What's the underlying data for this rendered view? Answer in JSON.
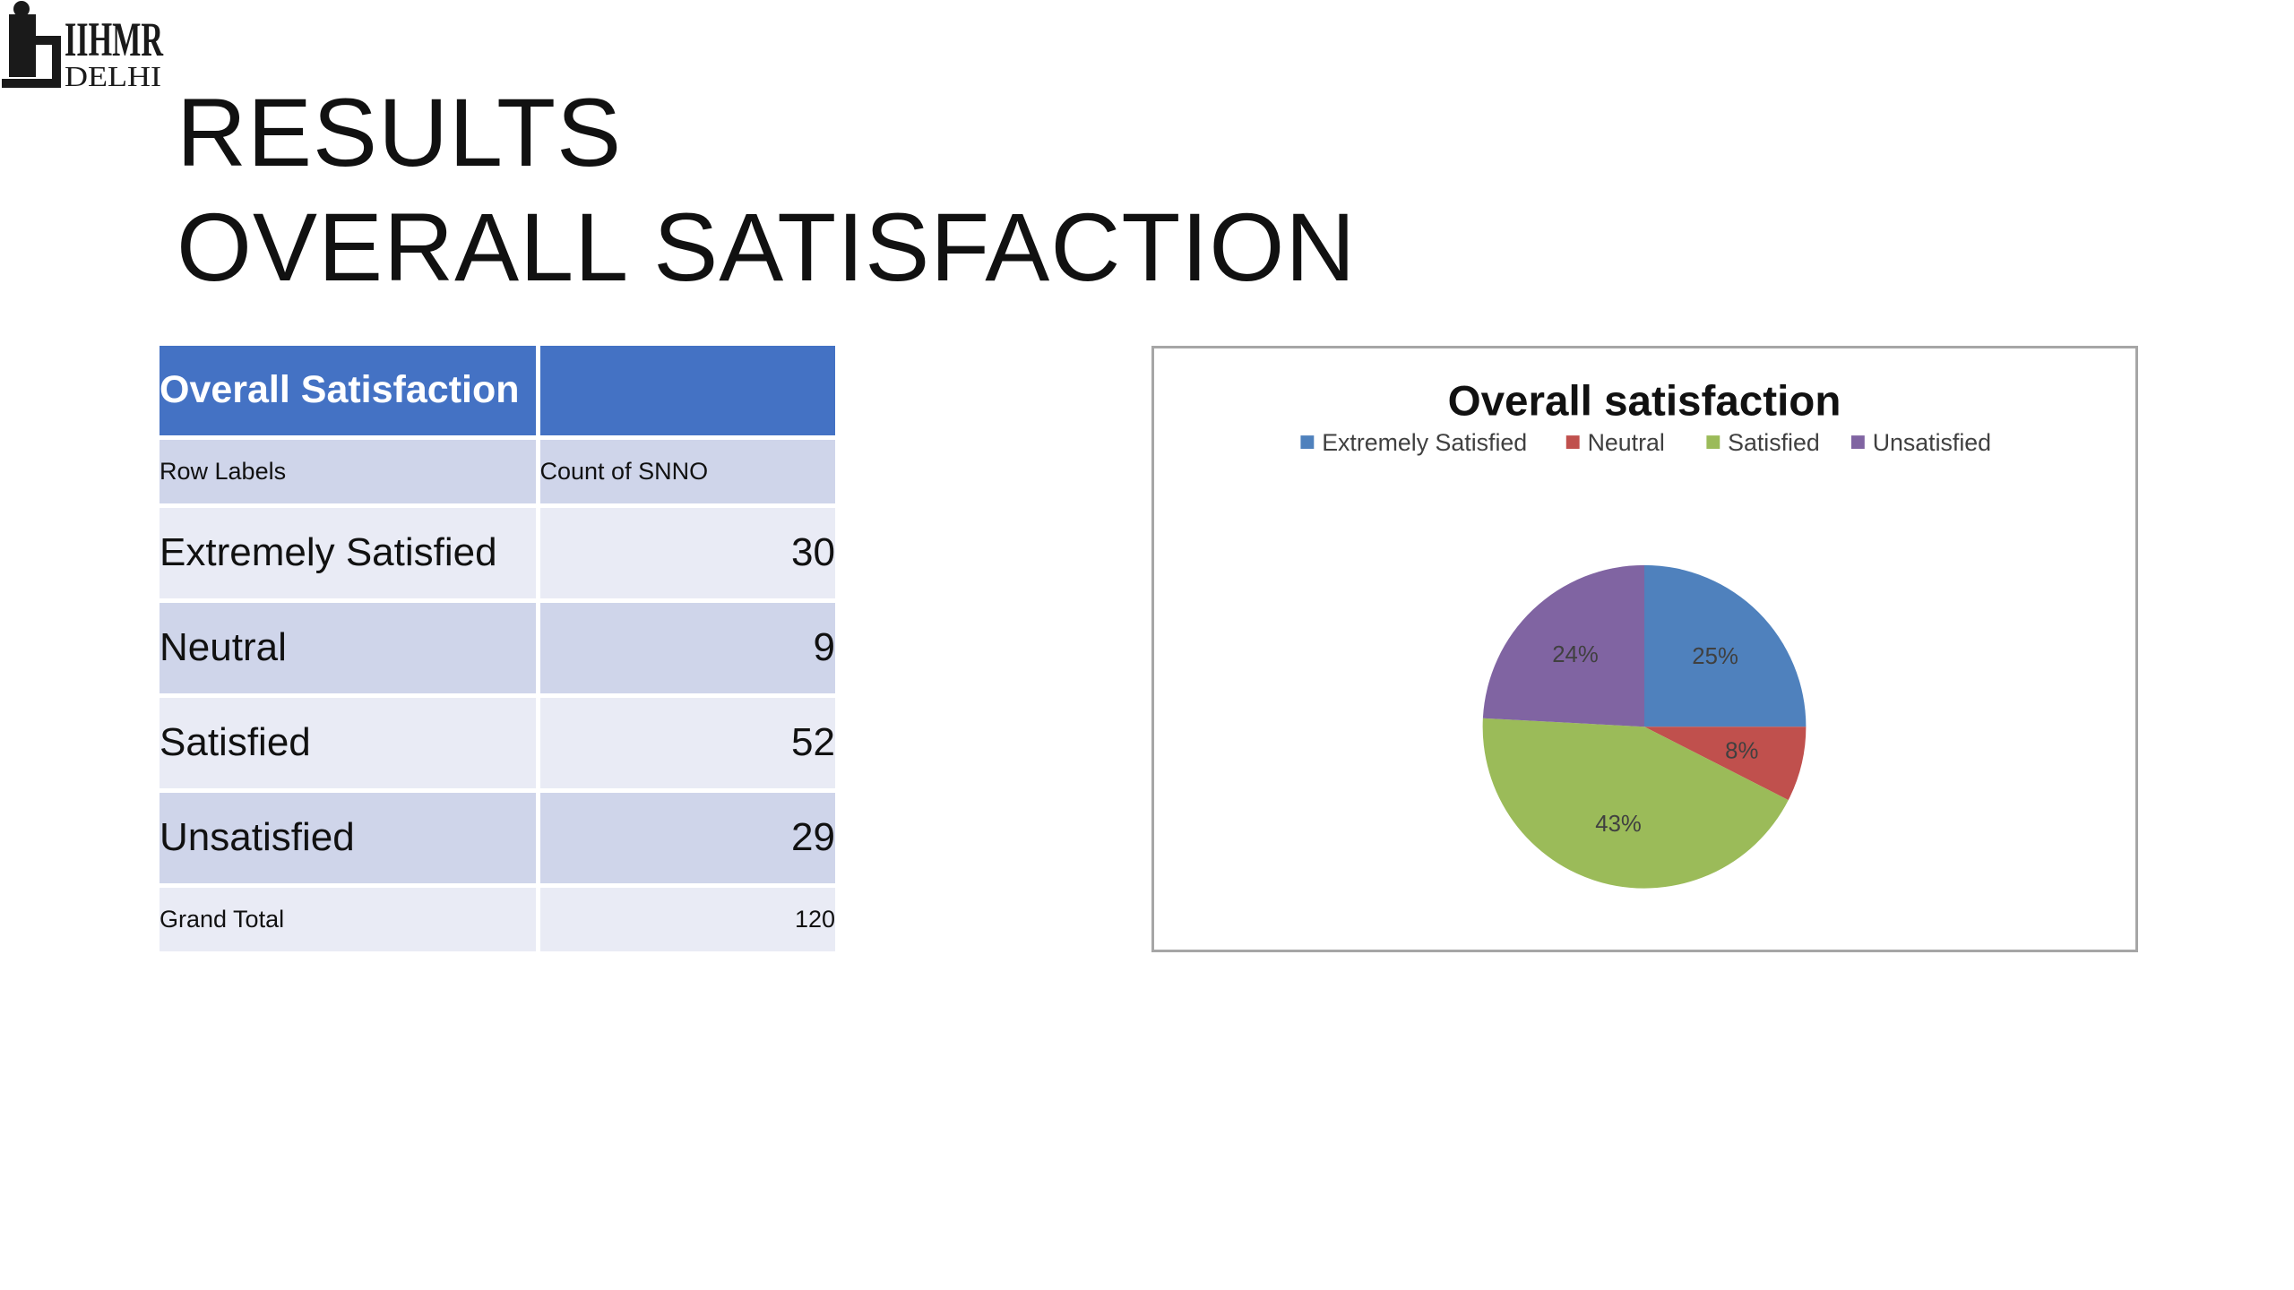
{
  "logo": {
    "line1": "IIHMR",
    "line2": "DELHI",
    "mark": "i"
  },
  "title": {
    "line1": "RESULTS",
    "line2": "OVERALL SATISFACTION"
  },
  "table": {
    "header": [
      "Overall Satisfaction",
      ""
    ],
    "subheader": [
      "Row Labels",
      "Count of SNNO"
    ],
    "rows": [
      {
        "label": "Extremely Satisfied",
        "value": "30"
      },
      {
        "label": "Neutral",
        "value": "9"
      },
      {
        "label": "Satisfied",
        "value": "52"
      },
      {
        "label": "Unsatisfied",
        "value": "29"
      }
    ],
    "total": {
      "label": "Grand Total",
      "value": "120"
    }
  },
  "chart_data": {
    "type": "pie",
    "title": "Overall satisfaction",
    "categories": [
      "Extremely Satisfied",
      "Neutral",
      "Satisfied",
      "Unsatisfied"
    ],
    "values": [
      30,
      9,
      52,
      29
    ],
    "labels": [
      "25%",
      "8%",
      "43%",
      "24%"
    ],
    "colors": [
      "#4f81bd",
      "#c0504d",
      "#9bbb59",
      "#8064a2"
    ],
    "legend_position": "top",
    "start_angle": "12 o'clock",
    "direction": "clockwise"
  }
}
